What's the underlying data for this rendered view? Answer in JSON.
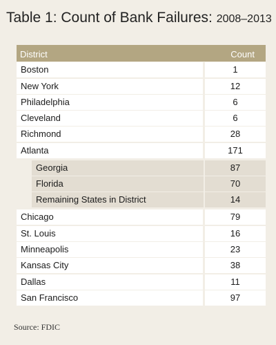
{
  "title": "Table 1: Count of Bank Failures:",
  "title_years": "2008–2013",
  "columns": {
    "district": "District",
    "count": "Count"
  },
  "rows": [
    {
      "label": "Boston",
      "count": "1"
    },
    {
      "label": "New York",
      "count": "12"
    },
    {
      "label": "Philadelphia",
      "count": "6"
    },
    {
      "label": "Cleveland",
      "count": "6"
    },
    {
      "label": "Richmond",
      "count": "28"
    },
    {
      "label": "Atlanta",
      "count": "171"
    },
    {
      "label": "Georgia",
      "count": "87"
    },
    {
      "label": "Florida",
      "count": "70"
    },
    {
      "label": "Remaining States in District",
      "count": "14"
    },
    {
      "label": "Chicago",
      "count": "79"
    },
    {
      "label": "St. Louis",
      "count": "16"
    },
    {
      "label": "Minneapolis",
      "count": "23"
    },
    {
      "label": "Kansas City",
      "count": "38"
    },
    {
      "label": "Dallas",
      "count": "11"
    },
    {
      "label": "San Francisco",
      "count": "97"
    }
  ],
  "source": "Source: FDIC",
  "colors": {
    "header_bg": "#b3a682",
    "page_bg": "#f2eee6",
    "sub_row_bg": "#e3ddd2"
  }
}
